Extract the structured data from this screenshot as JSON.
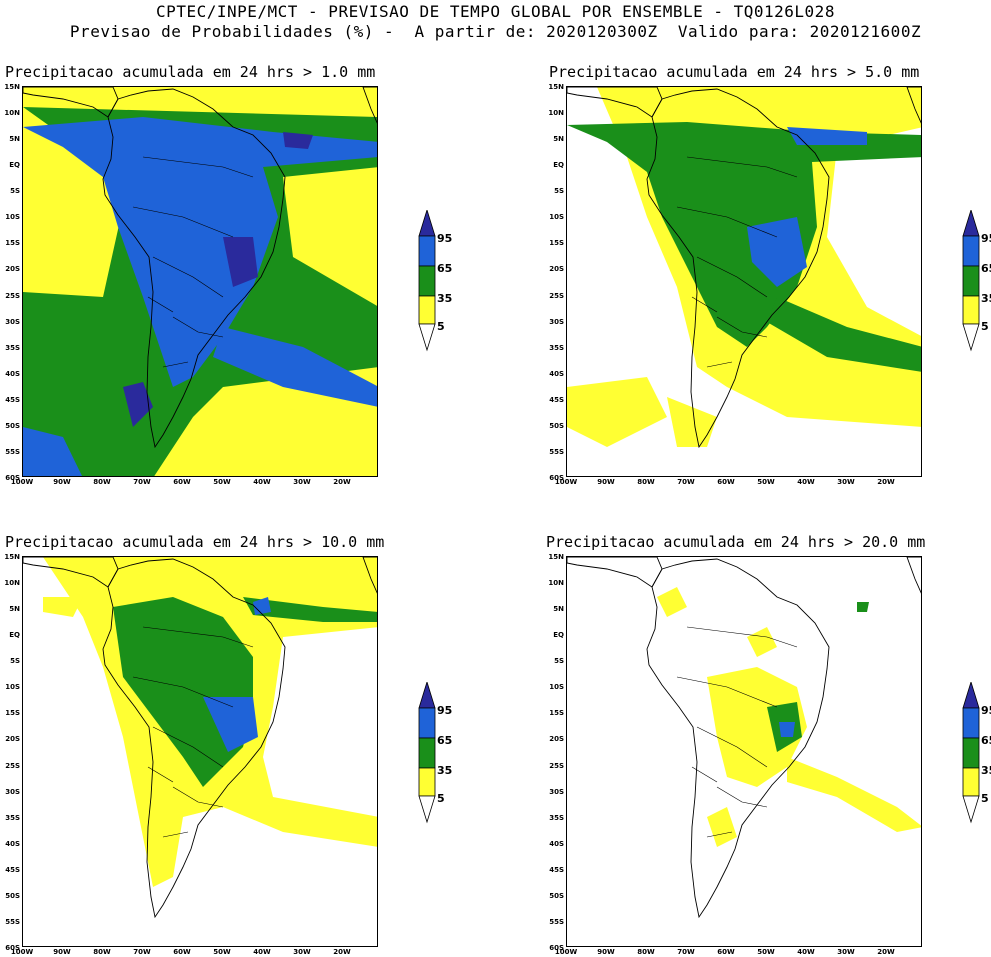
{
  "header": {
    "line1": "CPTEC/INPE/MCT - PREVISAO DE TEMPO GLOBAL POR ENSEMBLE - TQ0126L028",
    "line2": "Previsao de Probabilidades (%) -  A partir de: 2020120300Z  Valido para: 2020121600Z"
  },
  "panels": [
    {
      "title": "Precipitacao acumulada em 24 hrs > 1.0 mm",
      "level": 4
    },
    {
      "title": "Precipitacao acumulada em 24 hrs > 5.0 mm",
      "level": 3
    },
    {
      "title": "Precipitacao acumulada em 24 hrs > 10.0 mm",
      "level": 2
    },
    {
      "title": "Precipitacao acumulada em 24 hrs > 20.0 mm",
      "level": 1
    }
  ],
  "lat_labels": [
    "15N",
    "10N",
    "5N",
    "EQ",
    "5S",
    "10S",
    "15S",
    "20S",
    "25S",
    "30S",
    "35S",
    "40S",
    "45S",
    "50S",
    "55S",
    "60S"
  ],
  "lon_labels": [
    "100W",
    "90W",
    "80W",
    "70W",
    "60W",
    "50W",
    "40W",
    "30W",
    "20W"
  ],
  "legend": {
    "values": [
      "95",
      "65",
      "35",
      "5"
    ],
    "colors": {
      "c95": "#2a2a9c",
      "c65": "#1f63d8",
      "c35": "#1a8f1a",
      "c5": "#ffff33"
    }
  }
}
